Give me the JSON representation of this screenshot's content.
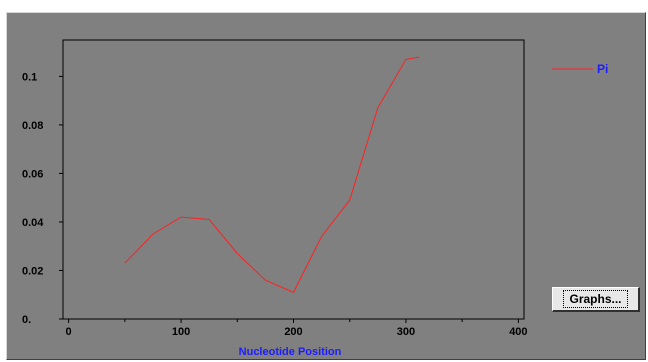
{
  "graphs_button": {
    "label": "Graphs..."
  },
  "chart_data": {
    "type": "line",
    "xlabel": "Nucleotide Position",
    "ylabel": "",
    "xlim": [
      -5,
      405
    ],
    "ylim": [
      0,
      0.115
    ],
    "x_ticks": [
      0,
      100,
      200,
      300,
      400
    ],
    "x_tick_labels": [
      "0",
      "100",
      "200",
      "300",
      "400"
    ],
    "y_ticks": [
      0,
      0.02,
      0.04,
      0.06,
      0.08,
      0.1
    ],
    "y_tick_labels": [
      "0.",
      "0.02",
      "0.04",
      "0.06",
      "0.08",
      "0.1"
    ],
    "grid": false,
    "legend_position": "right",
    "background": "#808080",
    "series": [
      {
        "name": "Pi",
        "color": "#ff2020",
        "x": [
          50,
          75,
          100,
          125,
          150,
          175,
          200,
          225,
          250,
          275,
          300,
          312
        ],
        "y": [
          0.023,
          0.035,
          0.042,
          0.041,
          0.027,
          0.016,
          0.011,
          0.034,
          0.049,
          0.087,
          0.107,
          0.108
        ]
      }
    ]
  }
}
